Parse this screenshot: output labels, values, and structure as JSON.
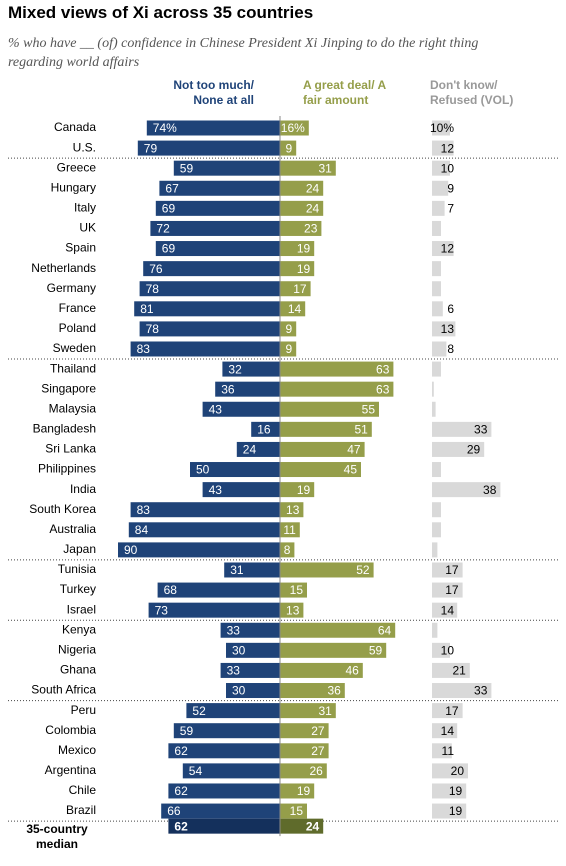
{
  "chart_data": {
    "type": "diverging-bar",
    "title": "Mixed views of Xi across 35 countries",
    "subtitle": "% who have __ (of) confidence in Chinese President Xi Jinping to do the right thing regarding world affairs",
    "categories": [
      "Canada",
      "U.S.",
      "Greece",
      "Hungary",
      "Italy",
      "UK",
      "Spain",
      "Netherlands",
      "Germany",
      "France",
      "Poland",
      "Sweden",
      "Thailand",
      "Singapore",
      "Malaysia",
      "Bangladesh",
      "Sri Lanka",
      "Philippines",
      "India",
      "South Korea",
      "Australia",
      "Japan",
      "Tunisia",
      "Turkey",
      "Israel",
      "Kenya",
      "Nigeria",
      "Ghana",
      "South Africa",
      "Peru",
      "Colombia",
      "Mexico",
      "Argentina",
      "Chile",
      "Brazil"
    ],
    "separators_after": [
      1,
      11,
      21,
      24,
      28,
      34
    ],
    "series": [
      {
        "name": "Not too much/ None at all",
        "color": "#1f4378",
        "side": "left",
        "values": [
          74,
          79,
          59,
          67,
          69,
          72,
          69,
          76,
          78,
          81,
          78,
          83,
          32,
          36,
          43,
          16,
          24,
          50,
          43,
          83,
          84,
          90,
          31,
          68,
          73,
          33,
          30,
          33,
          30,
          52,
          59,
          62,
          54,
          62,
          66
        ],
        "value_labels": [
          "74%",
          "79",
          "59",
          "67",
          "69",
          "72",
          "69",
          "76",
          "78",
          "81",
          "78",
          "83",
          "32",
          "36",
          "43",
          "16",
          "24",
          "50",
          "43",
          "83",
          "84",
          "90",
          "31",
          "68",
          "73",
          "33",
          "30",
          "33",
          "30",
          "52",
          "59",
          "62",
          "54",
          "62",
          "66"
        ]
      },
      {
        "name": "A great deal/ A fair amount",
        "color": "#959e4a",
        "side": "right",
        "values": [
          16,
          9,
          31,
          24,
          24,
          23,
          19,
          19,
          17,
          14,
          9,
          9,
          63,
          63,
          55,
          51,
          47,
          45,
          19,
          13,
          11,
          8,
          52,
          15,
          13,
          64,
          59,
          46,
          36,
          31,
          27,
          27,
          26,
          19,
          15
        ],
        "value_labels": [
          "16%",
          "9",
          "31",
          "24",
          "24",
          "23",
          "19",
          "19",
          "17",
          "14",
          "9",
          "9",
          "63",
          "63",
          "55",
          "51",
          "47",
          "45",
          "19",
          "13",
          "11",
          "8",
          "52",
          "15",
          "13",
          "64",
          "59",
          "46",
          "36",
          "31",
          "27",
          "27",
          "26",
          "19",
          "15"
        ]
      },
      {
        "name": "Don't know/ Refused (VOL)",
        "color": "#d9d9d9",
        "side": "dk",
        "values": [
          10,
          12,
          10,
          9,
          7,
          5,
          12,
          5,
          5,
          6,
          13,
          8,
          5,
          1,
          2,
          33,
          29,
          5,
          38,
          5,
          5,
          3,
          17,
          17,
          14,
          3,
          10,
          21,
          33,
          17,
          14,
          11,
          20,
          19,
          19
        ],
        "value_labels": [
          "10%",
          "12",
          "10",
          "9",
          "7",
          null,
          "12",
          null,
          null,
          "6",
          "13",
          "8",
          null,
          null,
          null,
          "33",
          "29",
          null,
          "38",
          null,
          null,
          null,
          "17",
          "17",
          "14",
          null,
          "10",
          "21",
          "33",
          "17",
          "14",
          "11",
          "20",
          "19",
          "19"
        ]
      }
    ],
    "median": {
      "label": "35-country median",
      "values": [
        62,
        24
      ],
      "colors": [
        "#14305c",
        "#5f6b2b"
      ]
    }
  }
}
